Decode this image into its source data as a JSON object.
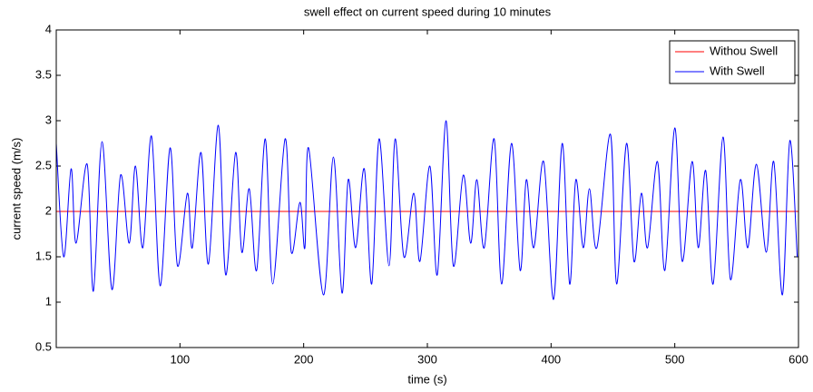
{
  "chart_data": {
    "type": "line",
    "title": "swell effect on current speed during 10 minutes",
    "x_label": "time (s)",
    "y_label": "current speed (m/s)",
    "xlim": [
      0,
      600
    ],
    "xticks": [
      100,
      200,
      300,
      400,
      500,
      600
    ],
    "ylim": [
      0.5,
      4
    ],
    "yticks": [
      0.5,
      1,
      1.5,
      2,
      2.5,
      3,
      3.5,
      4
    ],
    "legend": "top-right",
    "series": [
      {
        "name": "Withou Swell",
        "color": "#ff0000",
        "x": [
          0,
          600
        ],
        "values": [
          2,
          2
        ]
      },
      {
        "name": "With Swell",
        "color": "#0000ff",
        "x": [
          0,
          6,
          12,
          16,
          25,
          30,
          37,
          45,
          52,
          59,
          64,
          70,
          77,
          84,
          92,
          98,
          106,
          110,
          117,
          123,
          131,
          137,
          145,
          150,
          156,
          162,
          169,
          175,
          185,
          190,
          197,
          201,
          204,
          216,
          224,
          231,
          236,
          242,
          249,
          255,
          261,
          269,
          274,
          281,
          289,
          294,
          302,
          308,
          315,
          321,
          329,
          335,
          340,
          346,
          354,
          360,
          368,
          375,
          380,
          386,
          394,
          402,
          409,
          415,
          420,
          426,
          431,
          437,
          448,
          453,
          461,
          467,
          473,
          478,
          486,
          492,
          500,
          506,
          514,
          519,
          525,
          531,
          539,
          545,
          553,
          559,
          566,
          574,
          580,
          587,
          593,
          599
        ],
        "values": [
          2.75,
          1.5,
          2.47,
          1.65,
          2.52,
          1.12,
          2.77,
          1.14,
          2.4,
          1.65,
          2.5,
          1.6,
          2.83,
          1.18,
          2.7,
          1.4,
          2.2,
          1.6,
          2.65,
          1.42,
          2.95,
          1.3,
          2.65,
          1.55,
          2.25,
          1.35,
          2.8,
          1.2,
          2.8,
          1.55,
          2.1,
          1.6,
          2.7,
          1.08,
          2.6,
          1.1,
          2.35,
          1.6,
          2.47,
          1.2,
          2.8,
          1.4,
          2.8,
          1.5,
          2.2,
          1.45,
          2.5,
          1.3,
          3.0,
          1.4,
          2.4,
          1.65,
          2.35,
          1.6,
          2.8,
          1.2,
          2.75,
          1.35,
          2.35,
          1.6,
          2.55,
          1.03,
          2.75,
          1.2,
          2.35,
          1.6,
          2.25,
          1.6,
          2.85,
          1.2,
          2.75,
          1.45,
          2.2,
          1.6,
          2.55,
          1.35,
          2.92,
          1.45,
          2.55,
          1.6,
          2.45,
          1.2,
          2.82,
          1.25,
          2.35,
          1.6,
          2.52,
          1.55,
          2.55,
          1.08,
          2.78,
          1.5
        ]
      }
    ]
  }
}
